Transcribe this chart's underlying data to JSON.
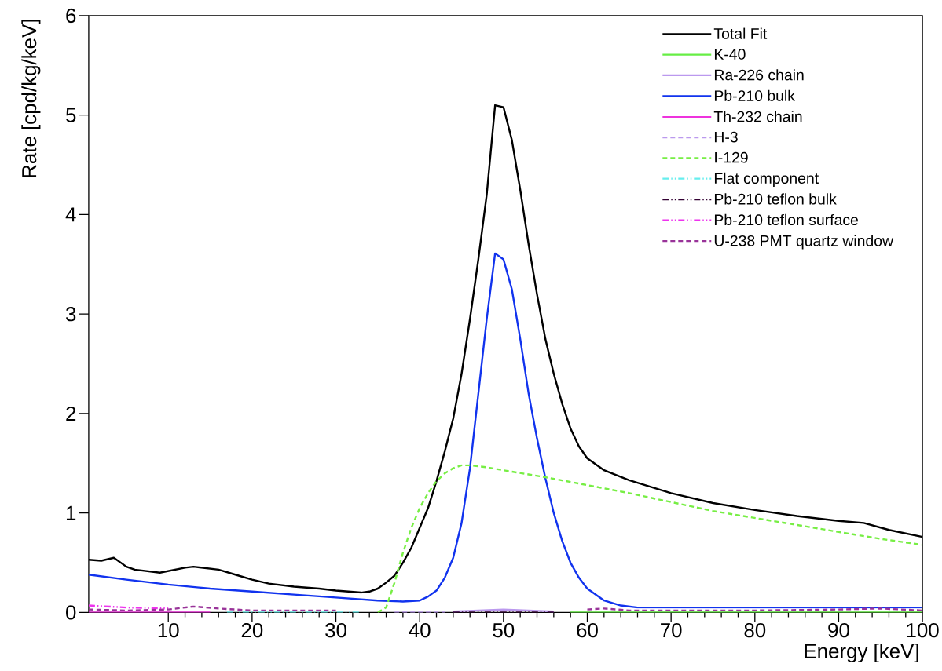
{
  "chart_data": {
    "type": "line",
    "xlabel": "Energy [keV]",
    "ylabel": "Rate [cpd/kg/keV]",
    "xlim": [
      0.5,
      100
    ],
    "ylim": [
      0,
      6
    ],
    "xticks": [
      10,
      20,
      30,
      40,
      50,
      60,
      70,
      80,
      90,
      100
    ],
    "yticks": [
      0,
      1,
      2,
      3,
      4,
      5,
      6
    ],
    "grid": false,
    "legend": "top right",
    "marker": "none",
    "series": [
      {
        "name": "Total Fit",
        "color": "#000000",
        "line_style": "solid",
        "x": [
          0.5,
          2,
          3.5,
          5,
          6,
          9,
          12,
          13,
          16,
          18,
          20,
          22,
          25,
          28,
          30,
          33,
          34,
          35,
          36,
          37,
          38,
          39,
          40,
          41,
          42,
          43,
          44,
          45,
          46,
          47,
          48,
          49,
          50,
          51,
          52,
          53,
          54,
          55,
          56,
          57,
          58,
          59,
          60,
          62,
          65,
          70,
          75,
          80,
          85,
          90,
          93,
          96,
          100
        ],
        "values": [
          0.53,
          0.52,
          0.55,
          0.46,
          0.43,
          0.4,
          0.45,
          0.46,
          0.43,
          0.38,
          0.33,
          0.29,
          0.26,
          0.24,
          0.22,
          0.2,
          0.21,
          0.24,
          0.3,
          0.37,
          0.5,
          0.65,
          0.85,
          1.05,
          1.32,
          1.62,
          1.95,
          2.4,
          2.95,
          3.55,
          4.2,
          5.1,
          5.08,
          4.75,
          4.25,
          3.7,
          3.2,
          2.75,
          2.4,
          2.1,
          1.85,
          1.67,
          1.55,
          1.43,
          1.33,
          1.2,
          1.1,
          1.03,
          0.97,
          0.92,
          0.9,
          0.83,
          0.76
        ]
      },
      {
        "name": "K-40",
        "color": "#66ee44",
        "line_style": "solid",
        "x": [
          58,
          100
        ],
        "values": [
          0,
          0
        ]
      },
      {
        "name": "Ra-226 chain",
        "color": "#bb99ee",
        "line_style": "solid",
        "x": [
          44,
          50,
          56
        ],
        "values": [
          0.01,
          0.03,
          0.01
        ]
      },
      {
        "name": "Pb-210 bulk",
        "color": "#1133ee",
        "line_style": "solid",
        "x": [
          0.5,
          5,
          10,
          15,
          20,
          25,
          30,
          35,
          38,
          40,
          41,
          42,
          43,
          44,
          45,
          46,
          47,
          48,
          49,
          50,
          51,
          52,
          53,
          54,
          55,
          56,
          57,
          58,
          59,
          60,
          62,
          64,
          66,
          70,
          100
        ],
        "values": [
          0.38,
          0.33,
          0.28,
          0.24,
          0.21,
          0.18,
          0.15,
          0.12,
          0.11,
          0.12,
          0.16,
          0.22,
          0.35,
          0.55,
          0.9,
          1.45,
          2.2,
          2.95,
          3.61,
          3.55,
          3.25,
          2.75,
          2.2,
          1.75,
          1.35,
          1.0,
          0.72,
          0.5,
          0.35,
          0.24,
          0.12,
          0.07,
          0.05,
          0.05,
          0.05
        ]
      },
      {
        "name": "Th-232 chain",
        "color": "#ee33dd",
        "line_style": "solid",
        "x": [
          0.5,
          15
        ],
        "values": [
          0,
          0
        ]
      },
      {
        "name": "H-3",
        "color": "#bb99ee",
        "line_style": "dashed",
        "x": [
          37,
          43
        ],
        "values": [
          0,
          0
        ]
      },
      {
        "name": "I-129",
        "color": "#77ee44",
        "line_style": "dashed",
        "x": [
          35,
          36,
          37,
          38,
          39,
          40,
          41,
          42,
          43,
          44,
          45,
          46,
          48,
          50,
          55,
          60,
          65,
          70,
          75,
          80,
          85,
          90,
          95,
          100
        ],
        "values": [
          0,
          0.05,
          0.3,
          0.6,
          0.85,
          1.05,
          1.2,
          1.32,
          1.4,
          1.45,
          1.48,
          1.48,
          1.46,
          1.43,
          1.36,
          1.28,
          1.2,
          1.11,
          1.02,
          0.95,
          0.88,
          0.81,
          0.74,
          0.68
        ]
      },
      {
        "name": "Flat component",
        "color": "#66eeee",
        "line_style": "dotted",
        "x": [
          17,
          33
        ],
        "values": [
          0,
          0
        ]
      },
      {
        "name": "Pb-210 teflon bulk",
        "color": "#330033",
        "line_style": "dotted",
        "x": [
          44,
          56
        ],
        "values": [
          0,
          0
        ]
      },
      {
        "name": "Pb-210 teflon surface",
        "color": "#ee33ee",
        "line_style": "dotted",
        "x": [
          0.5,
          5,
          10
        ],
        "values": [
          0.07,
          0.05,
          0.04
        ]
      },
      {
        "name": "U-238 PMT quartz window",
        "color": "#993399",
        "line_style": "dashed",
        "x": [
          0.5,
          5,
          10,
          13,
          16,
          20,
          30,
          40,
          50,
          60,
          62,
          65,
          70,
          80,
          90,
          95,
          100
        ],
        "values": [
          0.03,
          0.02,
          0.03,
          0.06,
          0.04,
          0.02,
          0.02,
          null,
          null,
          0.03,
          0.04,
          0.02,
          0.02,
          0.02,
          0.03,
          0.04,
          0.02
        ]
      }
    ]
  }
}
